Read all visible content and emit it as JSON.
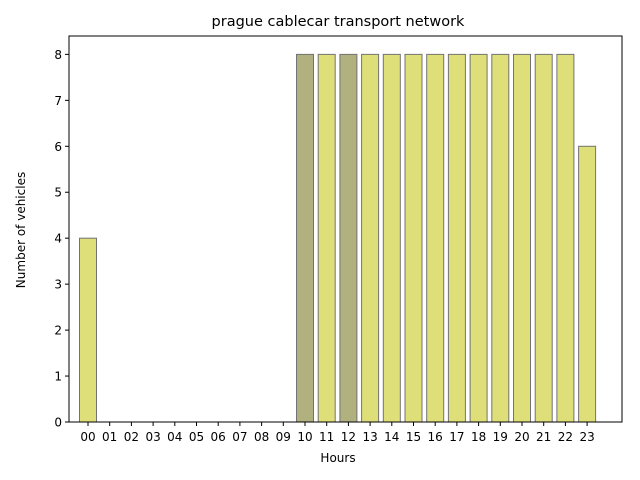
{
  "chart_data": {
    "type": "bar",
    "title": "prague cablecar transport network",
    "xlabel": "Hours",
    "ylabel": "Number of vehicles",
    "categories": [
      "00",
      "01",
      "02",
      "03",
      "04",
      "05",
      "06",
      "07",
      "08",
      "09",
      "10",
      "11",
      "12",
      "13",
      "14",
      "15",
      "16",
      "17",
      "18",
      "19",
      "20",
      "21",
      "22",
      "23"
    ],
    "values": [
      4,
      0,
      0,
      0,
      0,
      0,
      0,
      0,
      0,
      0,
      8,
      8,
      8,
      8,
      8,
      8,
      8,
      8,
      8,
      8,
      8,
      8,
      8,
      6
    ],
    "highlighted_categories": [
      "10",
      "12"
    ],
    "ylim": [
      0,
      8.4
    ],
    "yticks": [
      0,
      1,
      2,
      3,
      4,
      5,
      6,
      7,
      8
    ],
    "grid": false,
    "legend": "none",
    "colors": {
      "bar_fill": "#dfdf7a",
      "bar_fill_highlight": "#b1b17f",
      "bar_edge": "#737373",
      "axes": "#000000"
    }
  }
}
